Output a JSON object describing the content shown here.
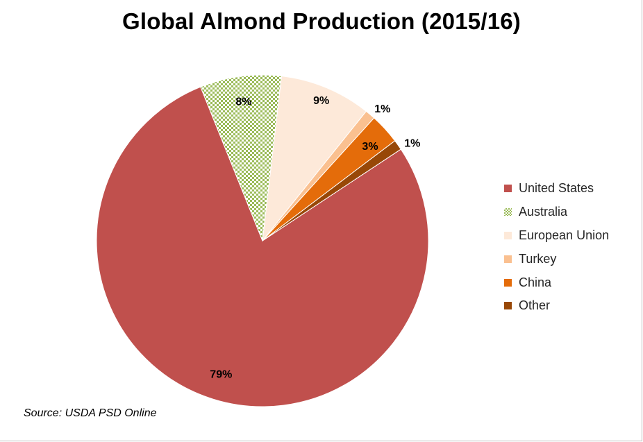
{
  "chart_data": {
    "type": "pie",
    "title": "Global Almond Production (2015/16)",
    "slices": [
      {
        "name": "United States",
        "value": 79,
        "label": "79%",
        "color": "#c0504d",
        "pattern": "solid"
      },
      {
        "name": "Australia",
        "value": 8,
        "label": "8%",
        "color": "#9bbb59",
        "pattern": "checker"
      },
      {
        "name": "European Union",
        "value": 9,
        "label": "9%",
        "color": "#fde9d9",
        "pattern": "solid"
      },
      {
        "name": "Turkey",
        "value": 1,
        "label": "1%",
        "color": "#fac090",
        "pattern": "solid"
      },
      {
        "name": "China",
        "value": 3,
        "label": "3%",
        "color": "#e46c0a",
        "pattern": "solid"
      },
      {
        "name": "Other",
        "value": 1,
        "label": "1%",
        "color": "#984807",
        "pattern": "solid"
      }
    ],
    "legend_position": "right",
    "source": "Source: USDA PSD Online"
  }
}
